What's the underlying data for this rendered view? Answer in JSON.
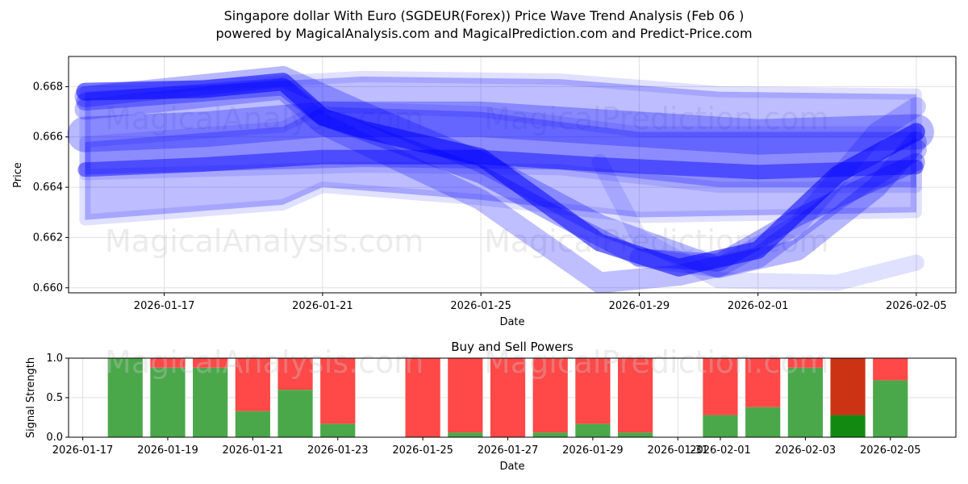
{
  "header": {
    "title_line1": "Singapore dollar With Euro (SGDEUR(Forex)) Price Wave Trend Analysis (Feb 06 )",
    "title_line2": "powered by MagicalAnalysis.com and MagicalPrediction.com and Predict-Price.com"
  },
  "watermarks": [
    "MagicalAnalysis.com",
    "MagicalPrediction.com"
  ],
  "colors": {
    "wave": "#0000ff",
    "buy": "#4aa84a",
    "sell": "#ff4848",
    "buy_dark": "#128a12",
    "sell_dark": "#cc3314",
    "grid": "#e0e0e0"
  },
  "chart_data": [
    {
      "type": "line",
      "name": "price-wave-chart",
      "xlabel": "Date",
      "ylabel": "Price",
      "grid": true,
      "xlim": [
        "2026-01-14T14:00",
        "2026-02-06T00:00"
      ],
      "ylim": [
        0.6598,
        0.6692
      ],
      "xticks": [
        "2026-01-17",
        "2026-01-21",
        "2026-01-25",
        "2026-01-29",
        "2026-02-01",
        "2026-02-05"
      ],
      "yticks": [
        "0.660",
        "0.662",
        "0.664",
        "0.666",
        "0.668"
      ],
      "bands": [
        {
          "name": "upper-band",
          "x": [
            "2026-01-15",
            "2026-01-22",
            "2026-01-27",
            "2026-01-31",
            "2026-02-05"
          ],
          "upper": [
            0.6678,
            0.6684,
            0.6683,
            0.6678,
            0.6677
          ],
          "lower": [
            0.6645,
            0.6648,
            0.6647,
            0.664,
            0.664
          ]
        },
        {
          "name": "lower-band",
          "x": [
            "2026-01-15",
            "2026-01-20",
            "2026-01-21",
            "2026-01-25",
            "2026-01-29",
            "2026-02-05"
          ],
          "upper": [
            0.6658,
            0.6664,
            0.6672,
            0.667,
            0.6662,
            0.6662
          ],
          "lower": [
            0.6627,
            0.6633,
            0.664,
            0.6635,
            0.6628,
            0.663
          ]
        }
      ],
      "series": [
        {
          "name": "trend-upper",
          "x": [
            "2026-01-15",
            "2026-01-18",
            "2026-01-21",
            "2026-01-25",
            "2026-01-28",
            "2026-02-01",
            "2026-02-05"
          ],
          "values": [
            0.6661,
            0.6663,
            0.6667,
            0.6667,
            0.6664,
            0.666,
            0.6662
          ]
        },
        {
          "name": "trend-lower",
          "x": [
            "2026-01-15",
            "2026-01-18",
            "2026-01-21",
            "2026-01-25",
            "2026-01-28",
            "2026-02-01",
            "2026-02-05"
          ],
          "values": [
            0.6647,
            0.6649,
            0.6652,
            0.6652,
            0.6649,
            0.6646,
            0.6648
          ]
        },
        {
          "name": "wave-main",
          "x": [
            "2026-01-15",
            "2026-01-18",
            "2026-01-20",
            "2026-01-21",
            "2026-01-22",
            "2026-01-25",
            "2026-01-28",
            "2026-01-30",
            "2026-02-01",
            "2026-02-03",
            "2026-02-05"
          ],
          "values": [
            0.6678,
            0.6679,
            0.6682,
            0.6668,
            0.6663,
            0.6652,
            0.6618,
            0.6608,
            0.6615,
            0.6645,
            0.6662
          ]
        },
        {
          "name": "wave-2",
          "x": [
            "2026-01-15",
            "2026-01-20",
            "2026-01-21",
            "2026-01-25",
            "2026-01-27",
            "2026-01-29",
            "2026-01-31",
            "2026-02-02",
            "2026-02-05"
          ],
          "values": [
            0.6674,
            0.668,
            0.6668,
            0.6645,
            0.6628,
            0.6612,
            0.661,
            0.6628,
            0.665
          ]
        },
        {
          "name": "wave-3",
          "x": [
            "2026-01-15",
            "2026-01-20",
            "2026-01-21",
            "2026-01-25",
            "2026-01-28",
            "2026-01-30",
            "2026-02-01",
            "2026-02-03",
            "2026-02-05"
          ],
          "values": [
            0.6671,
            0.6679,
            0.6665,
            0.6635,
            0.6602,
            0.6605,
            0.6612,
            0.6635,
            0.6655
          ]
        },
        {
          "name": "wave-4",
          "x": [
            "2026-01-15",
            "2026-01-20",
            "2026-01-22",
            "2026-01-25",
            "2026-01-28",
            "2026-01-31",
            "2026-02-02",
            "2026-02-04",
            "2026-02-05"
          ],
          "values": [
            0.6676,
            0.6684,
            0.667,
            0.665,
            0.6625,
            0.6608,
            0.6615,
            0.664,
            0.6658
          ]
        },
        {
          "name": "wave-5",
          "x": [
            "2026-01-28",
            "2026-01-29",
            "2026-01-31",
            "2026-02-03",
            "2026-02-05"
          ],
          "values": [
            0.665,
            0.662,
            0.6603,
            0.6602,
            0.661
          ]
        },
        {
          "name": "wave-6",
          "x": [
            "2026-01-29",
            "2026-01-31",
            "2026-02-02",
            "2026-02-04",
            "2026-02-05"
          ],
          "values": [
            0.6612,
            0.6608,
            0.6625,
            0.6662,
            0.6672
          ]
        }
      ]
    },
    {
      "type": "bar",
      "name": "buy-sell-power-chart",
      "title": "Buy and Sell Powers",
      "xlabel": "Date",
      "ylabel": "Signal Strength",
      "grid": true,
      "xlim": [
        "2026-01-16T16:00",
        "2026-02-06T13:00"
      ],
      "ylim": [
        0,
        1.0
      ],
      "xticks": [
        "2026-01-17",
        "2026-01-19",
        "2026-01-21",
        "2026-01-23",
        "2026-01-25",
        "2026-01-27",
        "2026-01-29",
        "2026-01-31",
        "2026-02-01",
        "2026-02-03",
        "2026-02-05"
      ],
      "yticks": [
        "0.0",
        "0.5",
        "1.0"
      ],
      "dates": [
        "2026-01-18",
        "2026-01-19",
        "2026-01-20",
        "2026-01-21",
        "2026-01-22",
        "2026-01-23",
        "2026-01-25",
        "2026-01-26",
        "2026-01-27",
        "2026-01-28",
        "2026-01-29",
        "2026-01-30",
        "2026-02-01",
        "2026-02-02",
        "2026-02-03",
        "2026-02-04",
        "2026-02-05"
      ],
      "series": [
        {
          "name": "Buy",
          "values": [
            1.0,
            0.88,
            0.88,
            0.33,
            0.6,
            0.17,
            0.0,
            0.06,
            0.0,
            0.06,
            0.17,
            0.06,
            0.28,
            0.38,
            0.88,
            0.28,
            0.72
          ]
        },
        {
          "name": "Sell",
          "values": [
            0.0,
            0.12,
            0.12,
            0.67,
            0.4,
            0.83,
            1.0,
            0.94,
            1.0,
            0.94,
            0.83,
            0.94,
            0.72,
            0.62,
            0.12,
            0.72,
            0.28
          ]
        }
      ],
      "highlight_date": "2026-02-04"
    }
  ]
}
